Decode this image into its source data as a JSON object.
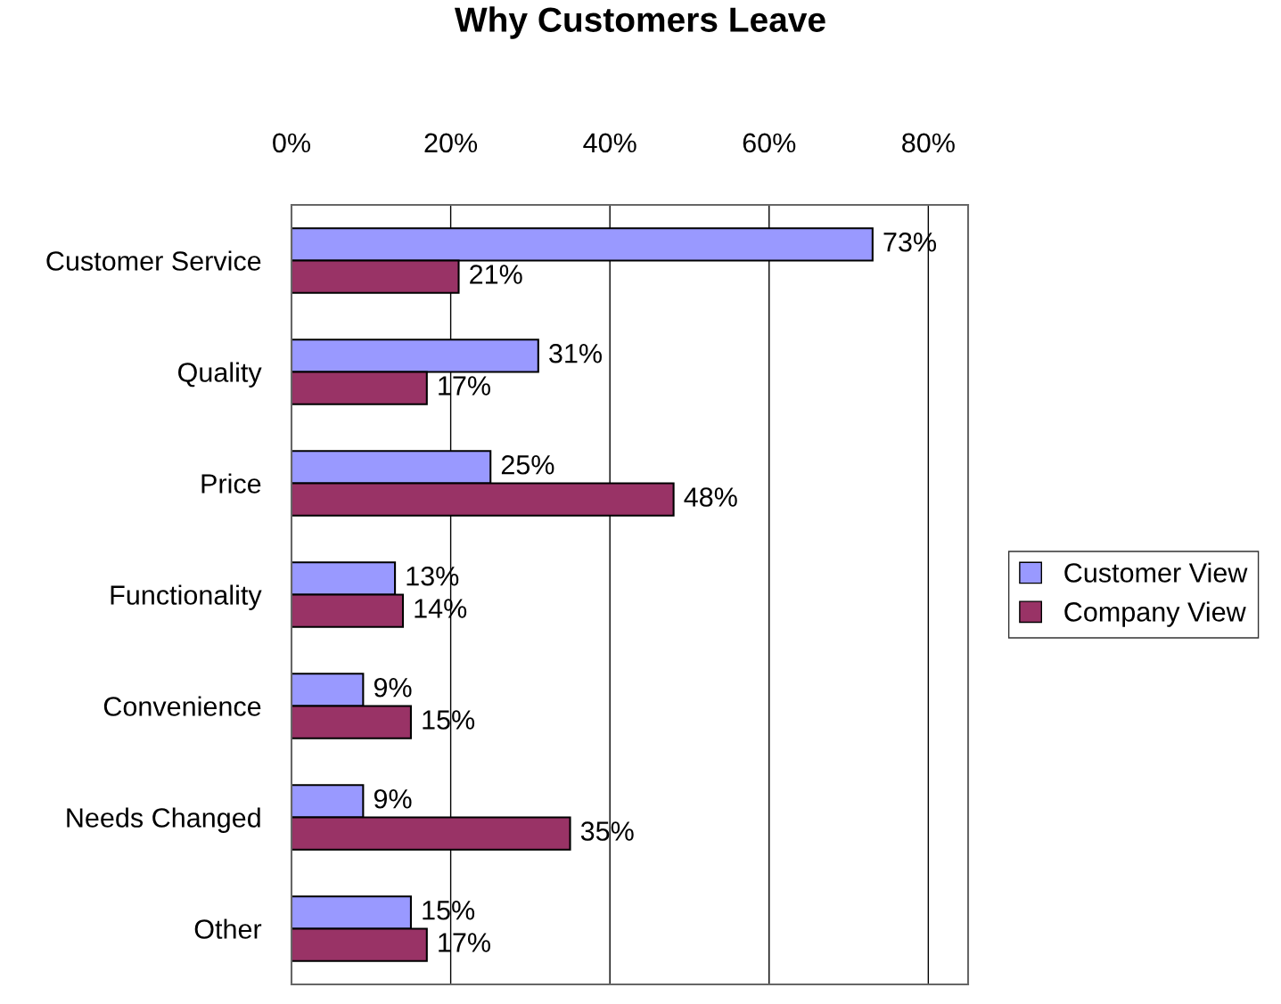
{
  "chart_data": {
    "type": "bar",
    "orientation": "horizontal",
    "title": "Why Customers Leave",
    "categories": [
      "Customer Service",
      "Quality",
      "Price",
      "Functionality",
      "Convenience",
      "Needs Changed",
      "Other"
    ],
    "series": [
      {
        "name": "Customer View",
        "color": "#9999ff",
        "values": [
          73,
          31,
          25,
          13,
          9,
          9,
          15
        ],
        "value_labels": [
          "73%",
          "31%",
          "25%",
          "13%",
          "9%",
          "9%",
          "15%"
        ]
      },
      {
        "name": "Company View",
        "color": "#993366",
        "values": [
          21,
          17,
          48,
          14,
          15,
          35,
          17
        ],
        "value_labels": [
          "21%",
          "17%",
          "48%",
          "14%",
          "15%",
          "35%",
          "17%"
        ]
      }
    ],
    "xlim": [
      0,
      85
    ],
    "xticks": [
      {
        "value": 0,
        "label": "0%"
      },
      {
        "value": 20,
        "label": "20%"
      },
      {
        "value": 40,
        "label": "40%"
      },
      {
        "value": 60,
        "label": "60%"
      },
      {
        "value": 80,
        "label": "80%"
      }
    ],
    "grid": "x",
    "legend": "right"
  }
}
